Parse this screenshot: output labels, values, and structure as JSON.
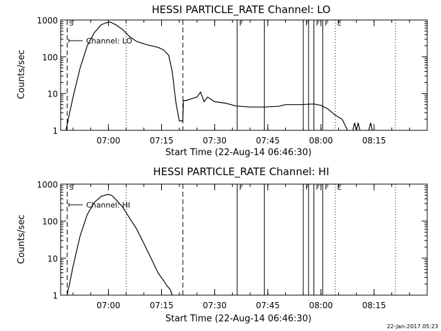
{
  "stamp": "22-Jan-2017 05:23",
  "chart_data": [
    {
      "type": "line",
      "title": "HESSI PARTICLE_RATE Channel: LO",
      "xlabel": "Start Time (22-Aug-14 06:46:30)",
      "ylabel": "Counts/sec",
      "xlim": [
        "06:46:30",
        "08:30:00"
      ],
      "ylim": [
        1,
        1000
      ],
      "yscale": "log",
      "xticks": [
        "07:00",
        "07:15",
        "07:30",
        "07:45",
        "08:00",
        "08:15"
      ],
      "yticks": [
        "1",
        "10",
        "100",
        "1000"
      ],
      "legend": {
        "label": "Channel: LO",
        "placement": "top-left"
      },
      "markers": [
        {
          "time": "06:48:20",
          "style": "dashed",
          "label": "S"
        },
        {
          "time": "07:05:00",
          "style": "dotted",
          "label": ""
        },
        {
          "time": "07:21:00",
          "style": "dashed",
          "label": ""
        },
        {
          "time": "07:36:20",
          "style": "solid",
          "label": "F"
        },
        {
          "time": "07:44:00",
          "style": "solid",
          "label": ""
        },
        {
          "time": "07:55:00",
          "style": "solid",
          "label": "F"
        },
        {
          "time": "07:56:30",
          "style": "solid",
          "label": ""
        },
        {
          "time": "07:58:00",
          "style": "solid",
          "label": "F"
        },
        {
          "time": "08:00:30",
          "style": "solid",
          "label": "F"
        },
        {
          "time": "08:04:00",
          "style": "dotted",
          "label": "E"
        },
        {
          "time": "08:21:00",
          "style": "dotted",
          "label": ""
        }
      ],
      "series": [
        {
          "name": "Channel: LO",
          "segments": [
            [
              [
                "06:48:00",
                1
              ],
              [
                "06:48:40",
                2
              ],
              [
                "06:50:00",
                8
              ],
              [
                "06:52:00",
                50
              ],
              [
                "06:54:00",
                200
              ],
              [
                "06:56:00",
                450
              ],
              [
                "06:58:00",
                750
              ],
              [
                "06:59:30",
                850
              ],
              [
                "07:00:30",
                880
              ],
              [
                "07:02:00",
                750
              ],
              [
                "07:04:00",
                550
              ],
              [
                "07:06:00",
                350
              ],
              [
                "07:08:00",
                260
              ],
              [
                "07:11:00",
                210
              ],
              [
                "07:14:00",
                180
              ],
              [
                "07:15:30",
                155
              ],
              [
                "07:17:00",
                110
              ],
              [
                "07:18:00",
                40
              ],
              [
                "07:19:00",
                6
              ],
              [
                "07:20:00",
                1.8
              ],
              [
                "07:21:00",
                1.8
              ],
              [
                "07:21:10",
                6.5
              ],
              [
                "07:22:00",
                6.5
              ],
              [
                "07:23:00",
                7
              ],
              [
                "07:25:00",
                8
              ],
              [
                "07:26:00",
                11
              ],
              [
                "07:27:00",
                6
              ],
              [
                "07:28:00",
                8
              ],
              [
                "07:30:00",
                6
              ],
              [
                "07:33:00",
                5.5
              ],
              [
                "07:36:00",
                4.6
              ],
              [
                "07:40:00",
                4.3
              ],
              [
                "07:44:00",
                4.3
              ],
              [
                "07:48:00",
                4.5
              ],
              [
                "07:50:00",
                5
              ],
              [
                "07:54:00",
                5
              ],
              [
                "07:58:00",
                5.2
              ],
              [
                "08:00:00",
                4.8
              ],
              [
                "08:02:00",
                3.8
              ],
              [
                "08:04:00",
                2.6
              ],
              [
                "08:06:00",
                2.0
              ],
              [
                "08:07:30",
                1.0
              ]
            ],
            [
              [
                "08:09:00",
                1
              ],
              [
                "08:09:30",
                1.6
              ],
              [
                "08:10:00",
                1
              ],
              [
                "08:10:30",
                1.6
              ],
              [
                "08:11:00",
                1
              ]
            ],
            [
              [
                "08:13:30",
                1
              ],
              [
                "08:14:00",
                1.6
              ],
              [
                "08:14:30",
                1
              ]
            ]
          ]
        }
      ]
    },
    {
      "type": "line",
      "title": "HESSI PARTICLE_RATE Channel: HI",
      "xlabel": "Start Time (22-Aug-14 06:46:30)",
      "ylabel": "Counts/sec",
      "xlim": [
        "06:46:30",
        "08:30:00"
      ],
      "ylim": [
        1,
        1000
      ],
      "yscale": "log",
      "xticks": [
        "07:00",
        "07:15",
        "07:30",
        "07:45",
        "08:00",
        "08:15"
      ],
      "yticks": [
        "1",
        "10",
        "100",
        "1000"
      ],
      "legend": {
        "label": "Channel: HI",
        "placement": "top-left"
      },
      "markers": [
        {
          "time": "06:48:20",
          "style": "dashed",
          "label": "S"
        },
        {
          "time": "07:05:00",
          "style": "dotted",
          "label": ""
        },
        {
          "time": "07:21:00",
          "style": "dashed",
          "label": ""
        },
        {
          "time": "07:36:20",
          "style": "solid",
          "label": "F"
        },
        {
          "time": "07:44:00",
          "style": "solid",
          "label": ""
        },
        {
          "time": "07:55:00",
          "style": "solid",
          "label": "F"
        },
        {
          "time": "07:56:30",
          "style": "solid",
          "label": ""
        },
        {
          "time": "07:58:00",
          "style": "solid",
          "label": "F"
        },
        {
          "time": "08:00:30",
          "style": "solid",
          "label": "F"
        },
        {
          "time": "08:04:00",
          "style": "dotted",
          "label": "E"
        },
        {
          "time": "08:21:00",
          "style": "dotted",
          "label": ""
        }
      ],
      "series": [
        {
          "name": "Channel: HI",
          "segments": [
            [
              [
                "06:48:20",
                1
              ],
              [
                "06:49:00",
                2
              ],
              [
                "06:50:00",
                6
              ],
              [
                "06:52:00",
                40
              ],
              [
                "06:54:00",
                150
              ],
              [
                "06:56:00",
                320
              ],
              [
                "06:58:00",
                470
              ],
              [
                "07:00:00",
                530
              ],
              [
                "07:01:00",
                490
              ],
              [
                "07:02:00",
                390
              ],
              [
                "07:04:00",
                240
              ],
              [
                "07:06:00",
                120
              ],
              [
                "07:08:00",
                60
              ],
              [
                "07:10:00",
                25
              ],
              [
                "07:12:00",
                10
              ],
              [
                "07:14:00",
                4
              ],
              [
                "07:15:30",
                2.5
              ],
              [
                "07:16:30",
                1.8
              ],
              [
                "07:17:30",
                1.4
              ],
              [
                "07:18:00",
                1.0
              ]
            ]
          ]
        }
      ]
    }
  ]
}
